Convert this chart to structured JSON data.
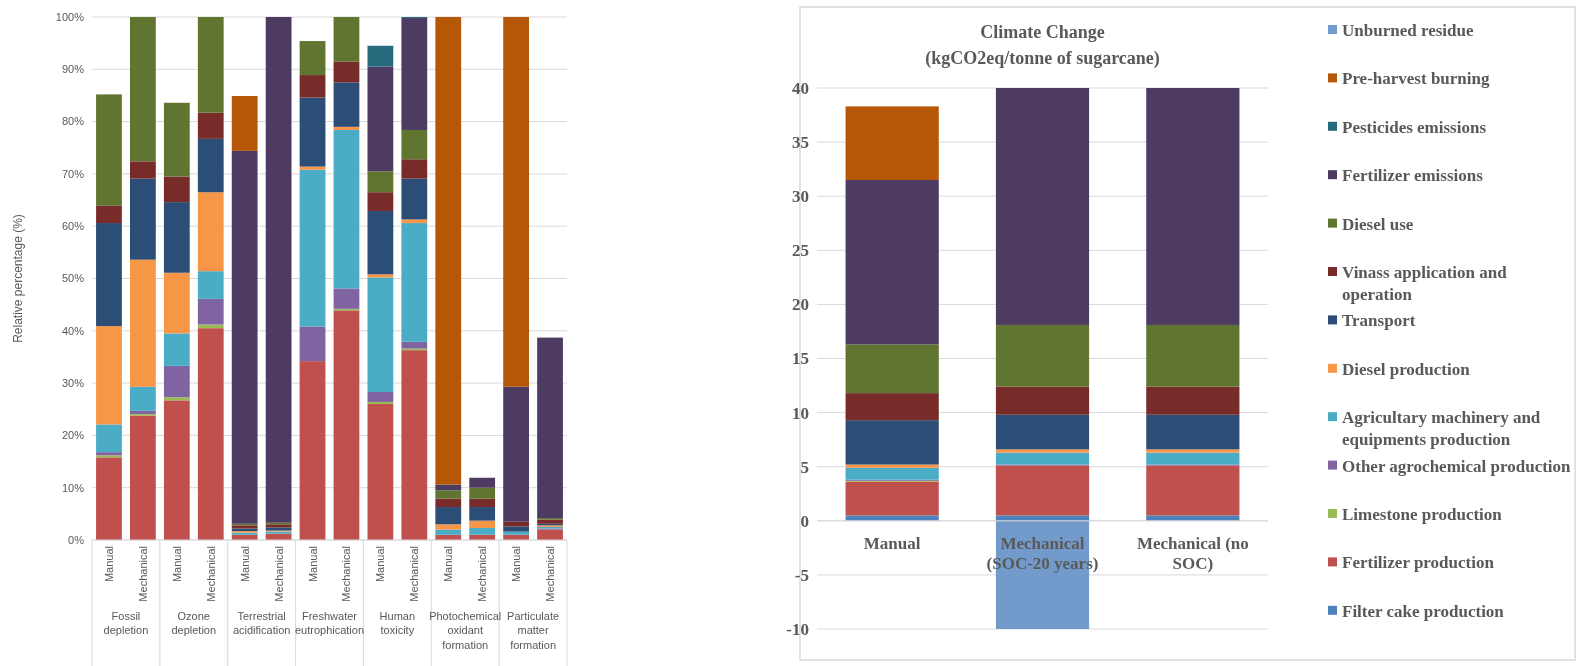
{
  "chart_data": [
    {
      "type": "bar",
      "stacked": true,
      "ylabel": "Relative percentage (%)",
      "categories": [
        "Manual",
        "Mechanical",
        "Manual",
        "Mechanical",
        "Manual",
        "Mechanical",
        "Manual",
        "Mechanical",
        "Manual",
        "Mechanical",
        "Manual",
        "Mechanical",
        "Manual",
        "Mechanical"
      ],
      "annotations": [
        "Fossil depletion",
        "Ozone depletion",
        "Terrestrial acidification",
        "Freshwater eutrophication",
        "Human toxicity",
        "Photochemical oxidant formation",
        "Particulate matter formation"
      ],
      "ylim": [
        0,
        100
      ],
      "yticks": [
        {
          "value": 0,
          "label": "0%"
        },
        {
          "value": 10,
          "label": "10%"
        },
        {
          "value": 20,
          "label": "20%"
        },
        {
          "value": 30,
          "label": "30%"
        },
        {
          "value": 40,
          "label": "40%"
        },
        {
          "value": 50,
          "label": "50%"
        },
        {
          "value": 60,
          "label": "60%"
        },
        {
          "value": 70,
          "label": "70%"
        },
        {
          "value": 80,
          "label": "80%"
        },
        {
          "value": 90,
          "label": "90%"
        },
        {
          "value": 100,
          "label": "100%"
        }
      ],
      "grid": "y",
      "series": [
        {
          "color": "#c0504d",
          "values": [
            15.8,
            23.8,
            26.7,
            40.5,
            1.0,
            1.2,
            34.2,
            43.9,
            26.0,
            36.3,
            1.0,
            1.0,
            1.0,
            2.0
          ]
        },
        {
          "color": "#9bbb59",
          "values": [
            0.4,
            0.3,
            0.6,
            0.7,
            0,
            0,
            0,
            0.3,
            0.4,
            0.3,
            0,
            0,
            0,
            0
          ]
        },
        {
          "color": "#8064a2",
          "values": [
            0.6,
            0.6,
            6.0,
            4.9,
            0,
            0,
            6.6,
            3.9,
            1.9,
            1.3,
            0,
            0,
            0,
            0.2
          ]
        },
        {
          "color": "#4bacc6",
          "values": [
            5.3,
            4.6,
            6.2,
            5.3,
            0.4,
            0.4,
            30.0,
            30.3,
            21.9,
            22.7,
            1.0,
            1.3,
            0.6,
            0.3
          ]
        },
        {
          "color": "#f79646",
          "values": [
            18.8,
            24.3,
            11.6,
            15.1,
            0.3,
            0.2,
            0.6,
            0.6,
            0.6,
            0.7,
            1.0,
            1.4,
            0,
            0.3
          ]
        },
        {
          "color": "#2c4d75",
          "values": [
            19.7,
            15.5,
            13.5,
            10.2,
            0.5,
            0.6,
            13.2,
            8.5,
            12.1,
            7.8,
            3.3,
            2.6,
            1.0,
            0.3
          ]
        },
        {
          "color": "#772c2a",
          "values": [
            3.3,
            3.3,
            4.9,
            5.0,
            0.6,
            0.6,
            4.3,
            4.0,
            3.6,
            3.7,
            1.6,
            1.6,
            0.9,
            0.8
          ]
        },
        {
          "color": "#5f7530",
          "values": [
            21.3,
            27.6,
            14.1,
            18.3,
            0.3,
            0.3,
            6.5,
            8.5,
            4.0,
            5.6,
            1.6,
            2.1,
            0,
            0.3
          ]
        },
        {
          "color": "#4d3b62",
          "values": [
            0,
            0,
            0,
            0,
            71.3,
            96.7,
            0,
            0,
            20.0,
            21.4,
            1.1,
            1.9,
            25.8,
            34.5
          ]
        },
        {
          "color": "#276a7c",
          "values": [
            0,
            0,
            0,
            0,
            0,
            0,
            0,
            0,
            4.0,
            0.2,
            0,
            0,
            0,
            0
          ]
        },
        {
          "color": "#b65708",
          "values": [
            0,
            0,
            0,
            0,
            10.5,
            0,
            0,
            0,
            0,
            0,
            89.4,
            0,
            70.7,
            0
          ]
        }
      ]
    },
    {
      "type": "bar",
      "stacked": true,
      "title": "Climate Change",
      "subtitle": "(kgCO2eq/tonne of sugarcane)",
      "categories": [
        "Manual",
        "Mechanical (SOC-20 years)",
        "Mechanical (no SOC)"
      ],
      "ylim": [
        -10,
        40
      ],
      "yticks": [
        -10,
        -5,
        0,
        5,
        10,
        15,
        20,
        25,
        30,
        35,
        40
      ],
      "grid": "y",
      "legend": "right",
      "series": [
        {
          "name": "Filter cake production",
          "color": "#4f81bd",
          "values": [
            0.5,
            0.5,
            0.5
          ]
        },
        {
          "name": "Fertilizer production",
          "color": "#c0504d",
          "values": [
            3.1,
            4.6,
            4.6
          ]
        },
        {
          "name": "Limestone production",
          "color": "#9bbb59",
          "values": [
            0.1,
            0,
            0
          ]
        },
        {
          "name": "Other agrochemical production",
          "color": "#8064a2",
          "values": [
            0.1,
            0.1,
            0.1
          ]
        },
        {
          "name": "Agricultary machinery and equipments production",
          "color": "#4bacc6",
          "values": [
            1.1,
            1.1,
            1.1
          ]
        },
        {
          "name": "Diesel production",
          "color": "#f79646",
          "values": [
            0.3,
            0.3,
            0.3
          ]
        },
        {
          "name": "Transport",
          "color": "#2c4d75",
          "values": [
            4.1,
            3.2,
            3.2
          ]
        },
        {
          "name": "Vinass application and operation",
          "color": "#772c2a",
          "values": [
            2.5,
            2.6,
            2.6
          ]
        },
        {
          "name": "Diesel use",
          "color": "#5f7530",
          "values": [
            4.5,
            5.7,
            5.7
          ]
        },
        {
          "name": "Fertilizer emissions",
          "color": "#4d3b62",
          "values": [
            15.2,
            21.9,
            21.9
          ]
        },
        {
          "name": "Pesticides emissions",
          "color": "#276a7c",
          "values": [
            0,
            0,
            0
          ]
        },
        {
          "name": "Pre-harvest burning",
          "color": "#b65708",
          "values": [
            6.8,
            0,
            0
          ]
        },
        {
          "name": "Unburned residue",
          "color": "#729aca",
          "values": [
            0,
            -10,
            0
          ]
        }
      ]
    }
  ]
}
